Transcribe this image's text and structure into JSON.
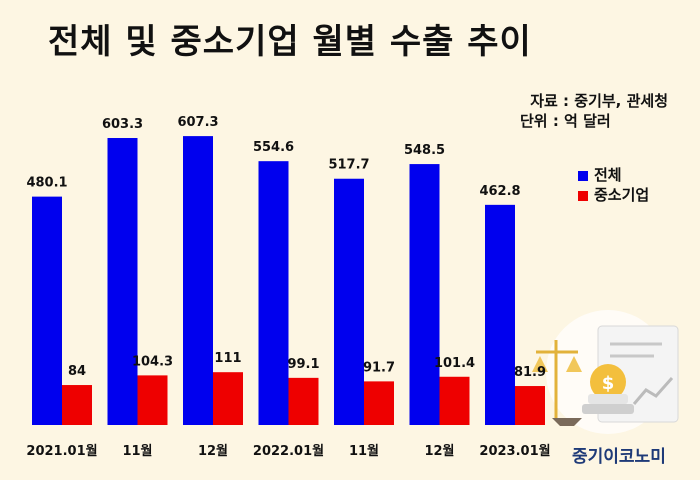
{
  "title": "전체 및 중소기업 월별 수출 추이",
  "source": "자료 : 중기부, 관세청",
  "unit": "단위 : 억 달러",
  "brand": "중기이코노미",
  "colors": {
    "total": "#0000ee",
    "sme": "#ee0000",
    "background": "#fdf6e3"
  },
  "chart_data": {
    "type": "bar",
    "categories": [
      "2021.01월",
      "11월",
      "12월",
      "2022.01월",
      "11월",
      "12월",
      "2023.01월"
    ],
    "series": [
      {
        "name": "전체",
        "values": [
          480.1,
          603.3,
          607.3,
          554.6,
          517.7,
          548.5,
          462.8
        ],
        "labels": [
          "480.1",
          "603.3",
          "607.3",
          "554.6",
          "517.7",
          "548.5",
          "462.8"
        ]
      },
      {
        "name": "중소기업",
        "values": [
          84,
          104.3,
          111,
          99.1,
          91.7,
          101.4,
          81.9
        ],
        "labels": [
          "84",
          "104.3",
          "111",
          "99.1",
          "91.7",
          "101.4",
          "81.9"
        ]
      }
    ],
    "ylim": [
      0,
      700
    ],
    "grid": false,
    "legend_position": "right"
  }
}
